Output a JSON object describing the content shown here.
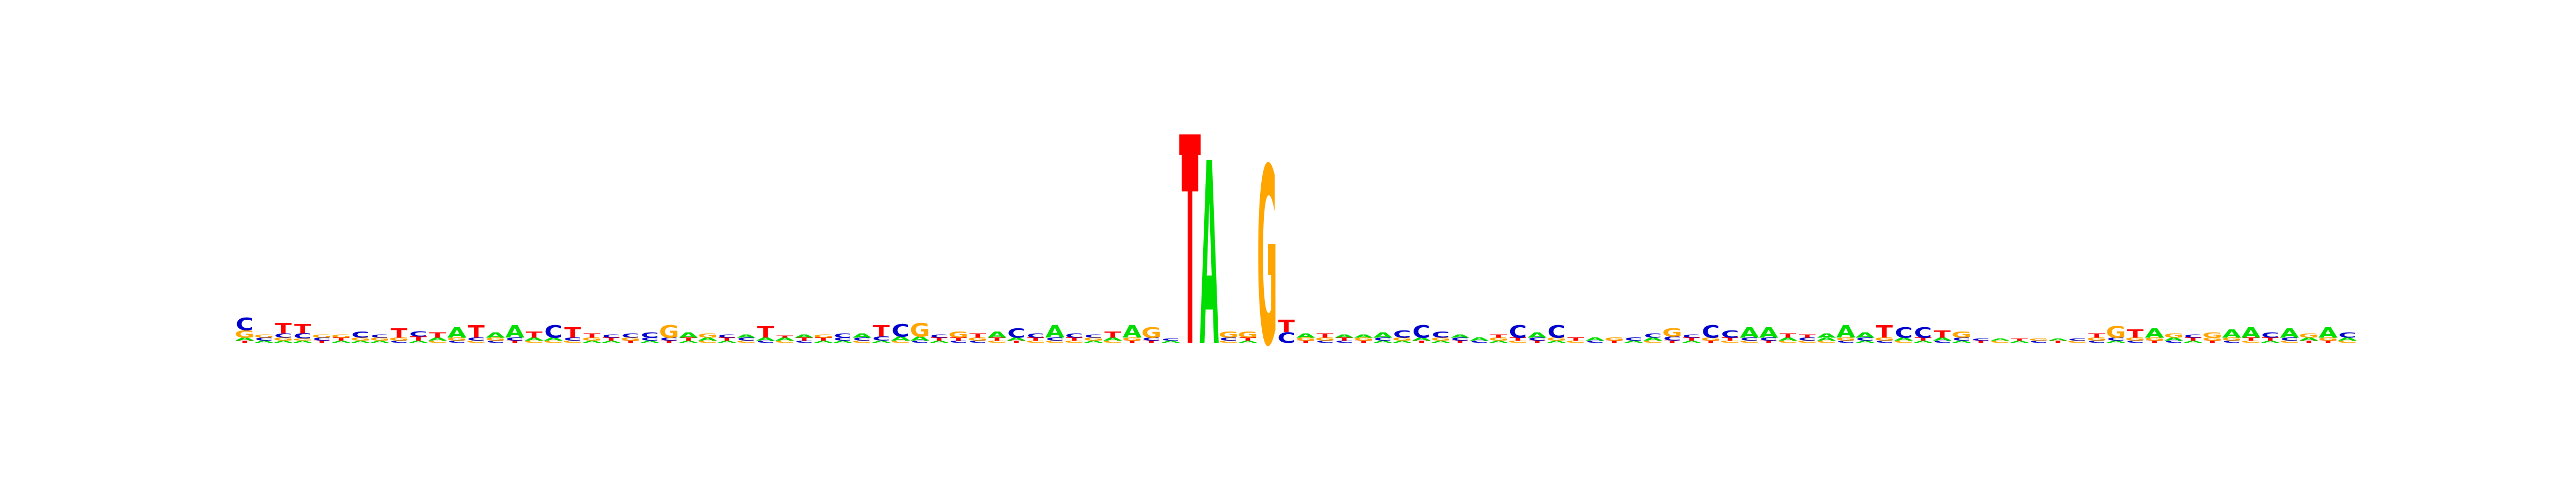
{
  "colors": {
    "A": "#00dd00",
    "C": "#0000cc",
    "G": "#ffa500",
    "T": "#ff0000"
  },
  "logo": {
    "type": "sequence-logo",
    "bits_max": 2,
    "columns": [
      [
        [
          "T",
          0.02
        ],
        [
          "A",
          0.03
        ],
        [
          "G",
          0.07
        ],
        [
          "C",
          0.12
        ]
      ],
      [
        [
          "A",
          0.02
        ],
        [
          "C",
          0.03
        ],
        [
          "G",
          0.03
        ]
      ],
      [
        [
          "A",
          0.02
        ],
        [
          "G",
          0.03
        ],
        [
          "C",
          0.04
        ],
        [
          "T",
          0.1
        ]
      ],
      [
        [
          "A",
          0.02
        ],
        [
          "G",
          0.02
        ],
        [
          "C",
          0.05
        ],
        [
          "T",
          0.09
        ]
      ],
      [
        [
          "T",
          0.02
        ],
        [
          "C",
          0.03
        ],
        [
          "G",
          0.03
        ]
      ],
      [
        [
          "A",
          0.02
        ],
        [
          "T",
          0.03
        ],
        [
          "G",
          0.03
        ]
      ],
      [
        [
          "A",
          0.02
        ],
        [
          "G",
          0.03
        ],
        [
          "C",
          0.06
        ]
      ],
      [
        [
          "A",
          0.02
        ],
        [
          "G",
          0.03
        ],
        [
          "C",
          0.03
        ]
      ],
      [
        [
          "C",
          0.02
        ],
        [
          "G",
          0.03
        ],
        [
          "T",
          0.09
        ]
      ],
      [
        [
          "A",
          0.02
        ],
        [
          "T",
          0.04
        ],
        [
          "C",
          0.05
        ]
      ],
      [
        [
          "G",
          0.02
        ],
        [
          "A",
          0.03
        ],
        [
          "T",
          0.05
        ]
      ],
      [
        [
          "C",
          0.02
        ],
        [
          "G",
          0.03
        ],
        [
          "A",
          0.1
        ]
      ],
      [
        [
          "G",
          0.02
        ],
        [
          "C",
          0.03
        ],
        [
          "T",
          0.12
        ]
      ],
      [
        [
          "C",
          0.02
        ],
        [
          "G",
          0.03
        ],
        [
          "A",
          0.05
        ]
      ],
      [
        [
          "T",
          0.02
        ],
        [
          "C",
          0.03
        ],
        [
          "A",
          0.12
        ]
      ],
      [
        [
          "G",
          0.02
        ],
        [
          "A",
          0.03
        ],
        [
          "T",
          0.06
        ]
      ],
      [
        [
          "G",
          0.02
        ],
        [
          "A",
          0.03
        ],
        [
          "C",
          0.12
        ]
      ],
      [
        [
          "G",
          0.02
        ],
        [
          "C",
          0.03
        ],
        [
          "T",
          0.1
        ]
      ],
      [
        [
          "A",
          0.02
        ],
        [
          "G",
          0.03
        ],
        [
          "T",
          0.04
        ]
      ],
      [
        [
          "A",
          0.02
        ],
        [
          "T",
          0.03
        ],
        [
          "C",
          0.03
        ]
      ],
      [
        [
          "T",
          0.02
        ],
        [
          "G",
          0.03
        ],
        [
          "C",
          0.04
        ]
      ],
      [
        [
          "A",
          0.02
        ],
        [
          "C",
          0.03
        ],
        [
          "C",
          0.05
        ]
      ],
      [
        [
          "T",
          0.02
        ],
        [
          "C",
          0.03
        ],
        [
          "G",
          0.12
        ]
      ],
      [
        [
          "A",
          0.02
        ],
        [
          "T",
          0.03
        ],
        [
          "A",
          0.05
        ]
      ],
      [
        [
          "G",
          0.02
        ],
        [
          "A",
          0.03
        ],
        [
          "G",
          0.04
        ]
      ],
      [
        [
          "A",
          0.02
        ],
        [
          "T",
          0.03
        ],
        [
          "C",
          0.03
        ]
      ],
      [
        [
          "G",
          0.02
        ],
        [
          "C",
          0.03
        ],
        [
          "A",
          0.03
        ]
      ],
      [
        [
          "C",
          0.02
        ],
        [
          "A",
          0.03
        ],
        [
          "T",
          0.11
        ]
      ],
      [
        [
          "G",
          0.02
        ],
        [
          "A",
          0.03
        ],
        [
          "T",
          0.02
        ]
      ],
      [
        [
          "C",
          0.02
        ],
        [
          "T",
          0.03
        ],
        [
          "A",
          0.03
        ]
      ],
      [
        [
          "A",
          0.02
        ],
        [
          "T",
          0.03
        ],
        [
          "G",
          0.03
        ]
      ],
      [
        [
          "A",
          0.02
        ],
        [
          "C",
          0.03
        ],
        [
          "C",
          0.04
        ]
      ],
      [
        [
          "G",
          0.02
        ],
        [
          "C",
          0.03
        ],
        [
          "A",
          0.04
        ]
      ],
      [
        [
          "A",
          0.02
        ],
        [
          "C",
          0.04
        ],
        [
          "T",
          0.11
        ]
      ],
      [
        [
          "G",
          0.02
        ],
        [
          "A",
          0.04
        ],
        [
          "C",
          0.12
        ]
      ],
      [
        [
          "C",
          0.02
        ],
        [
          "A",
          0.04
        ],
        [
          "G",
          0.13
        ]
      ],
      [
        [
          "A",
          0.02
        ],
        [
          "T",
          0.03
        ],
        [
          "C",
          0.03
        ]
      ],
      [
        [
          "C",
          0.02
        ],
        [
          "T",
          0.03
        ],
        [
          "G",
          0.06
        ]
      ],
      [
        [
          "C",
          0.02
        ],
        [
          "G",
          0.03
        ],
        [
          "T",
          0.04
        ]
      ],
      [
        [
          "G",
          0.02
        ],
        [
          "T",
          0.03
        ],
        [
          "A",
          0.06
        ]
      ],
      [
        [
          "T",
          0.02
        ],
        [
          "A",
          0.03
        ],
        [
          "C",
          0.09
        ]
      ],
      [
        [
          "G",
          0.02
        ],
        [
          "T",
          0.03
        ],
        [
          "C",
          0.04
        ]
      ],
      [
        [
          "G",
          0.02
        ],
        [
          "C",
          0.03
        ],
        [
          "A",
          0.12
        ]
      ],
      [
        [
          "G",
          0.02
        ],
        [
          "T",
          0.03
        ],
        [
          "C",
          0.04
        ]
      ],
      [
        [
          "A",
          0.02
        ],
        [
          "G",
          0.03
        ],
        [
          "C",
          0.03
        ]
      ],
      [
        [
          "G",
          0.02
        ],
        [
          "A",
          0.03
        ],
        [
          "T",
          0.06
        ]
      ],
      [
        [
          "T",
          0.02
        ],
        [
          "G",
          0.03
        ],
        [
          "A",
          0.12
        ]
      ],
      [
        [
          "T",
          0.02
        ],
        [
          "C",
          0.03
        ],
        [
          "G",
          0.1
        ]
      ],
      [
        [
          "A",
          0.02
        ],
        [
          "C",
          0.02
        ]
      ],
      [
        [
          "T",
          1.8
        ]
      ],
      [
        [
          "A",
          1.75
        ]
      ],
      [
        [
          "G",
          0.02
        ],
        [
          "C",
          0.03
        ],
        [
          "G",
          0.06
        ]
      ],
      [
        [
          "A",
          0.02
        ],
        [
          "T",
          0.03
        ],
        [
          "G",
          0.06
        ]
      ],
      [
        [
          "G",
          1.7
        ]
      ],
      [
        [
          "C",
          0.1
        ],
        [
          "T",
          0.12
        ]
      ],
      [
        [
          "T",
          0.02
        ],
        [
          "G",
          0.03
        ],
        [
          "A",
          0.04
        ]
      ],
      [
        [
          "C",
          0.02
        ],
        [
          "G",
          0.03
        ],
        [
          "T",
          0.04
        ]
      ],
      [
        [
          "C",
          0.02
        ],
        [
          "T",
          0.03
        ],
        [
          "A",
          0.03
        ]
      ],
      [
        [
          "T",
          0.02
        ],
        [
          "G",
          0.03
        ],
        [
          "A",
          0.03
        ]
      ],
      [
        [
          "A",
          0.02
        ],
        [
          "C",
          0.03
        ],
        [
          "A",
          0.05
        ]
      ],
      [
        [
          "A",
          0.02
        ],
        [
          "G",
          0.03
        ],
        [
          "C",
          0.07
        ]
      ],
      [
        [
          "T",
          0.02
        ],
        [
          "A",
          0.03
        ],
        [
          "C",
          0.12
        ]
      ],
      [
        [
          "A",
          0.02
        ],
        [
          "G",
          0.03
        ],
        [
          "C",
          0.06
        ]
      ],
      [
        [
          "T",
          0.02
        ],
        [
          "C",
          0.03
        ],
        [
          "A",
          0.03
        ]
      ],
      [
        [
          "C",
          0.02
        ],
        [
          "A",
          0.03
        ]
      ],
      [
        [
          "A",
          0.02
        ],
        [
          "G",
          0.03
        ],
        [
          "T",
          0.03
        ]
      ],
      [
        [
          "G",
          0.02
        ],
        [
          "T",
          0.03
        ],
        [
          "C",
          0.12
        ]
      ],
      [
        [
          "T",
          0.02
        ],
        [
          "C",
          0.03
        ],
        [
          "A",
          0.05
        ]
      ],
      [
        [
          "A",
          0.02
        ],
        [
          "G",
          0.03
        ],
        [
          "C",
          0.12
        ]
      ],
      [
        [
          "G",
          0.02
        ],
        [
          "T",
          0.03
        ]
      ],
      [
        [
          "C",
          0.02
        ],
        [
          "A",
          0.03
        ]
      ],
      [
        [
          "T",
          0.02
        ],
        [
          "G",
          0.03
        ]
      ],
      [
        [
          "A",
          0.02
        ],
        [
          "C",
          0.03
        ]
      ],
      [
        [
          "G",
          0.02
        ],
        [
          "A",
          0.03
        ],
        [
          "C",
          0.04
        ]
      ],
      [
        [
          "T",
          0.02
        ],
        [
          "C",
          0.04
        ],
        [
          "G",
          0.08
        ]
      ],
      [
        [
          "A",
          0.02
        ],
        [
          "T",
          0.03
        ],
        [
          "C",
          0.03
        ]
      ],
      [
        [
          "T",
          0.02
        ],
        [
          "G",
          0.03
        ],
        [
          "C",
          0.12
        ]
      ],
      [
        [
          "G",
          0.02
        ],
        [
          "T",
          0.03
        ],
        [
          "C",
          0.07
        ]
      ],
      [
        [
          "G",
          0.02
        ],
        [
          "C",
          0.03
        ],
        [
          "A",
          0.1
        ]
      ],
      [
        [
          "T",
          0.02
        ],
        [
          "C",
          0.03
        ],
        [
          "A",
          0.1
        ]
      ],
      [
        [
          "G",
          0.02
        ],
        [
          "A",
          0.03
        ],
        [
          "T",
          0.04
        ]
      ],
      [
        [
          "G",
          0.02
        ],
        [
          "C",
          0.03
        ],
        [
          "T",
          0.03
        ]
      ],
      [
        [
          "G",
          0.02
        ],
        [
          "A",
          0.03
        ],
        [
          "A",
          0.04
        ]
      ],
      [
        [
          "C",
          0.02
        ],
        [
          "G",
          0.03
        ],
        [
          "A",
          0.12
        ]
      ],
      [
        [
          "A",
          0.02
        ],
        [
          "C",
          0.03
        ],
        [
          "A",
          0.05
        ]
      ],
      [
        [
          "C",
          0.02
        ],
        [
          "G",
          0.03
        ],
        [
          "T",
          0.12
        ]
      ],
      [
        [
          "G",
          0.02
        ],
        [
          "A",
          0.03
        ],
        [
          "C",
          0.1
        ]
      ],
      [
        [
          "A",
          0.02
        ],
        [
          "T",
          0.03
        ],
        [
          "C",
          0.1
        ]
      ],
      [
        [
          "C",
          0.02
        ],
        [
          "A",
          0.03
        ],
        [
          "T",
          0.07
        ]
      ],
      [
        [
          "A",
          0.02
        ],
        [
          "C",
          0.03
        ],
        [
          "G",
          0.06
        ]
      ],
      [
        [
          "T",
          0.02
        ],
        [
          "C",
          0.02
        ]
      ],
      [
        [
          "G",
          0.02
        ],
        [
          "A",
          0.02
        ]
      ],
      [
        [
          "A",
          0.02
        ],
        [
          "T",
          0.02
        ]
      ],
      [
        [
          "C",
          0.02
        ],
        [
          "G",
          0.02
        ]
      ],
      [
        [
          "T",
          0.02
        ],
        [
          "A",
          0.02
        ]
      ],
      [
        [
          "G",
          0.02
        ],
        [
          "C",
          0.02
        ]
      ],
      [
        [
          "C",
          0.02
        ],
        [
          "G",
          0.03
        ],
        [
          "T",
          0.04
        ]
      ],
      [
        [
          "A",
          0.02
        ],
        [
          "C",
          0.03
        ],
        [
          "G",
          0.11
        ]
      ],
      [
        [
          "C",
          0.02
        ],
        [
          "G",
          0.03
        ],
        [
          "T",
          0.08
        ]
      ],
      [
        [
          "T",
          0.02
        ],
        [
          "G",
          0.03
        ],
        [
          "A",
          0.09
        ]
      ],
      [
        [
          "C",
          0.02
        ],
        [
          "A",
          0.03
        ],
        [
          "G",
          0.04
        ]
      ],
      [
        [
          "A",
          0.02
        ],
        [
          "T",
          0.03
        ],
        [
          "C",
          0.03
        ]
      ],
      [
        [
          "T",
          0.02
        ],
        [
          "G",
          0.03
        ],
        [
          "G",
          0.05
        ]
      ],
      [
        [
          "C",
          0.02
        ],
        [
          "G",
          0.03
        ],
        [
          "A",
          0.08
        ]
      ],
      [
        [
          "G",
          0.02
        ],
        [
          "T",
          0.03
        ],
        [
          "A",
          0.1
        ]
      ],
      [
        [
          "A",
          0.02
        ],
        [
          "T",
          0.03
        ],
        [
          "C",
          0.05
        ]
      ],
      [
        [
          "G",
          0.02
        ],
        [
          "C",
          0.03
        ],
        [
          "A",
          0.09
        ]
      ],
      [
        [
          "T",
          0.02
        ],
        [
          "A",
          0.03
        ],
        [
          "G",
          0.04
        ]
      ],
      [
        [
          "T",
          0.02
        ],
        [
          "G",
          0.03
        ],
        [
          "A",
          0.1
        ]
      ],
      [
        [
          "G",
          0.02
        ],
        [
          "A",
          0.03
        ],
        [
          "C",
          0.05
        ]
      ]
    ]
  }
}
